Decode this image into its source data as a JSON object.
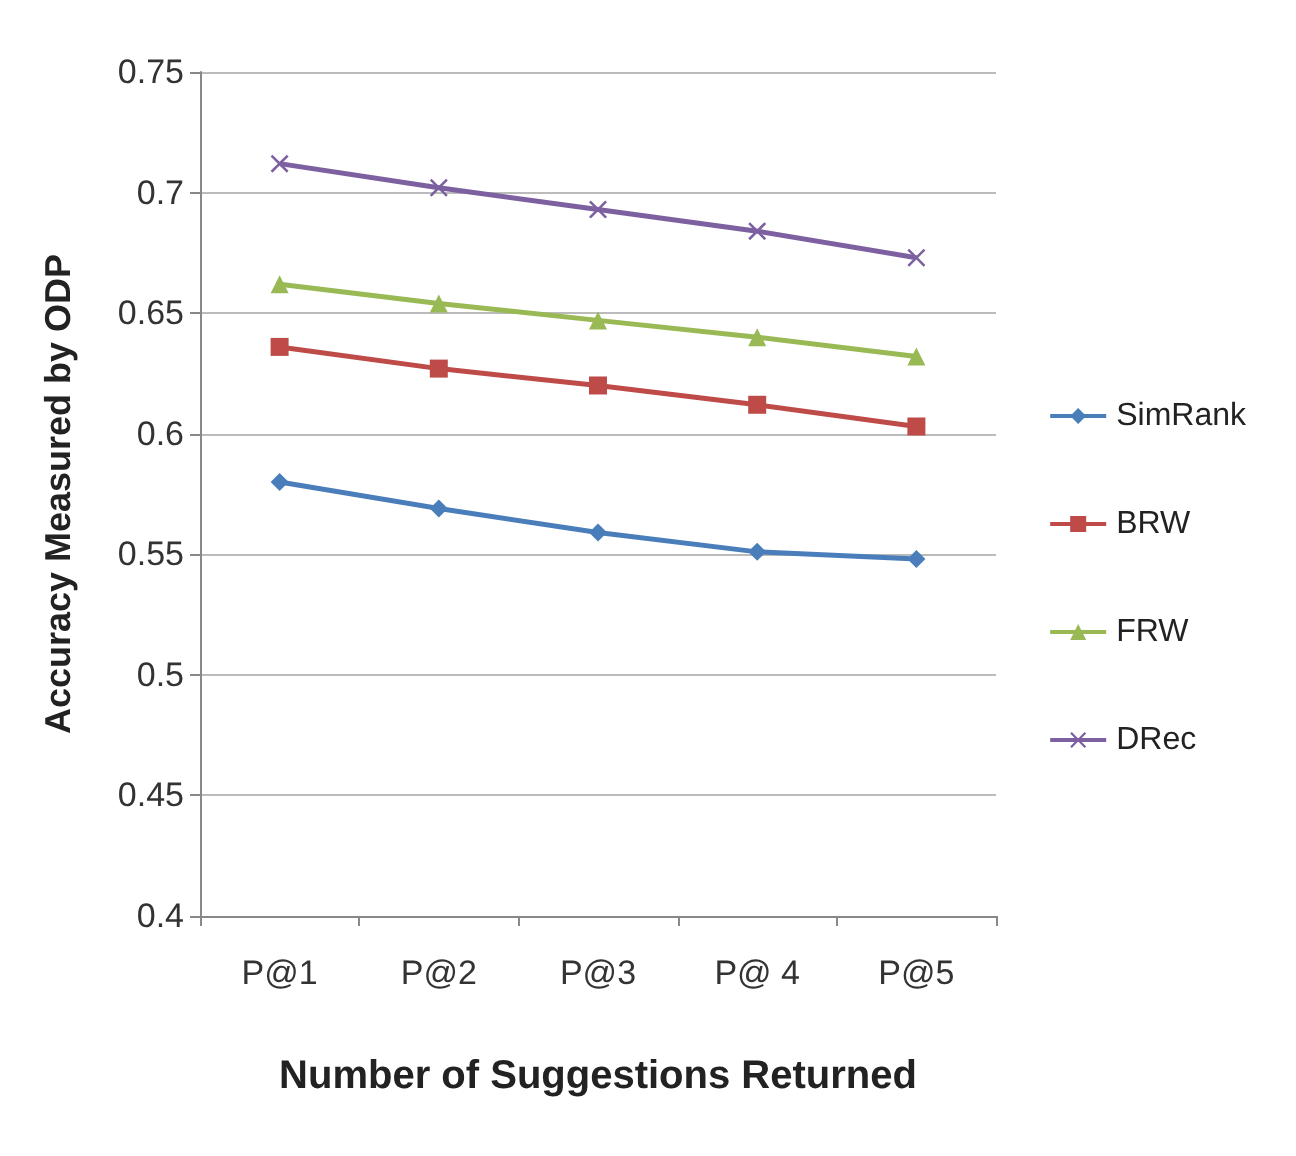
{
  "chart_data": {
    "type": "line",
    "xlabel": "Number of Suggestions Returned",
    "ylabel": "Accuracy Measured by ODP",
    "categories": [
      "P@1",
      "P@2",
      "P@3",
      "P@ 4",
      "P@5"
    ],
    "series": [
      {
        "name": "SimRank",
        "color": "#4a7ebb",
        "marker": "diamond",
        "values": [
          0.58,
          0.569,
          0.559,
          0.551,
          0.548
        ]
      },
      {
        "name": "BRW",
        "color": "#be4b48",
        "marker": "square",
        "values": [
          0.636,
          0.627,
          0.62,
          0.612,
          0.603
        ]
      },
      {
        "name": "FRW",
        "color": "#98b954",
        "marker": "triangle",
        "values": [
          0.662,
          0.654,
          0.647,
          0.64,
          0.632
        ]
      },
      {
        "name": "DRec",
        "color": "#7d60a0",
        "marker": "cross",
        "values": [
          0.712,
          0.702,
          0.693,
          0.684,
          0.673
        ]
      }
    ],
    "ylim": [
      0.4,
      0.75
    ],
    "yticks": [
      0.4,
      0.45,
      0.5,
      0.55,
      0.6,
      0.65,
      0.7,
      0.75
    ],
    "grid": "y",
    "legend": "right"
  }
}
